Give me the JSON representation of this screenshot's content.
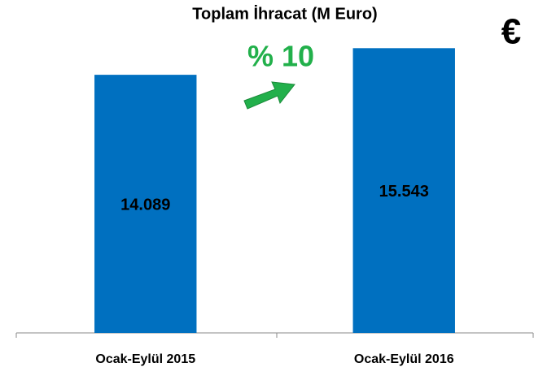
{
  "chart_data": {
    "type": "bar",
    "title": "Toplam İhracat (M Euro)",
    "categories": [
      "Ocak-Eylül 2015",
      "Ocak-Eylül 2016"
    ],
    "values": [
      14089,
      15543
    ],
    "value_labels": [
      "14.089",
      "15.543"
    ],
    "color": "#0070c0",
    "ylim": [
      0,
      16000
    ],
    "annotation": "% 10",
    "symbol": "€"
  }
}
